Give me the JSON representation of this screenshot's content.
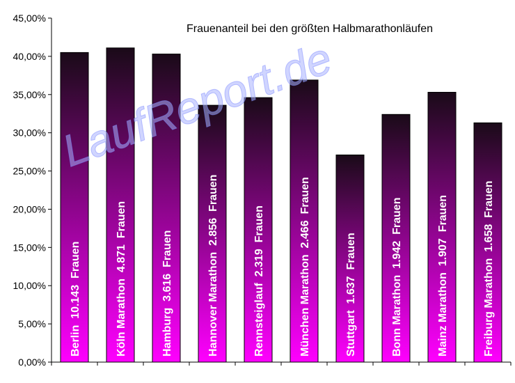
{
  "chart_data": {
    "type": "bar",
    "title": "Frauenanteil bei den größten Halbmarathonläufen",
    "ylim": [
      0,
      45
    ],
    "y_ticks": [
      "0,00%",
      "5,00%",
      "10,00%",
      "15,00%",
      "20,00%",
      "25,00%",
      "30,00%",
      "35,00%",
      "40,00%",
      "45,00%"
    ],
    "y_tick_values": [
      0,
      5,
      10,
      15,
      20,
      25,
      30,
      35,
      40,
      45
    ],
    "y_unit": "%",
    "grid": false,
    "categories": [
      "Berlin  10.143  Frauen",
      "Köln Marathon  4.871  Frauen",
      "Hamburg  3.616  Frauen",
      "Hannover Marathon  2.856  Frauen",
      "Rennsteiglauf  2.319  Frauen",
      "München Marathon  2.466  Frauen",
      "Stuttgart  1.637  Frauen",
      "Bonn Marathon  1.942  Frauen",
      "Mainz Marathon  1.907  Frauen",
      "Freiburg Marathon  1.658  Frauen"
    ],
    "values": [
      40.5,
      41.1,
      40.3,
      33.6,
      34.6,
      36.9,
      27.1,
      32.4,
      35.3,
      31.3
    ],
    "bar_colors": {
      "top": "#1a0a18",
      "bottom": "#ff00ff"
    }
  },
  "watermark": "LaufReport.de"
}
